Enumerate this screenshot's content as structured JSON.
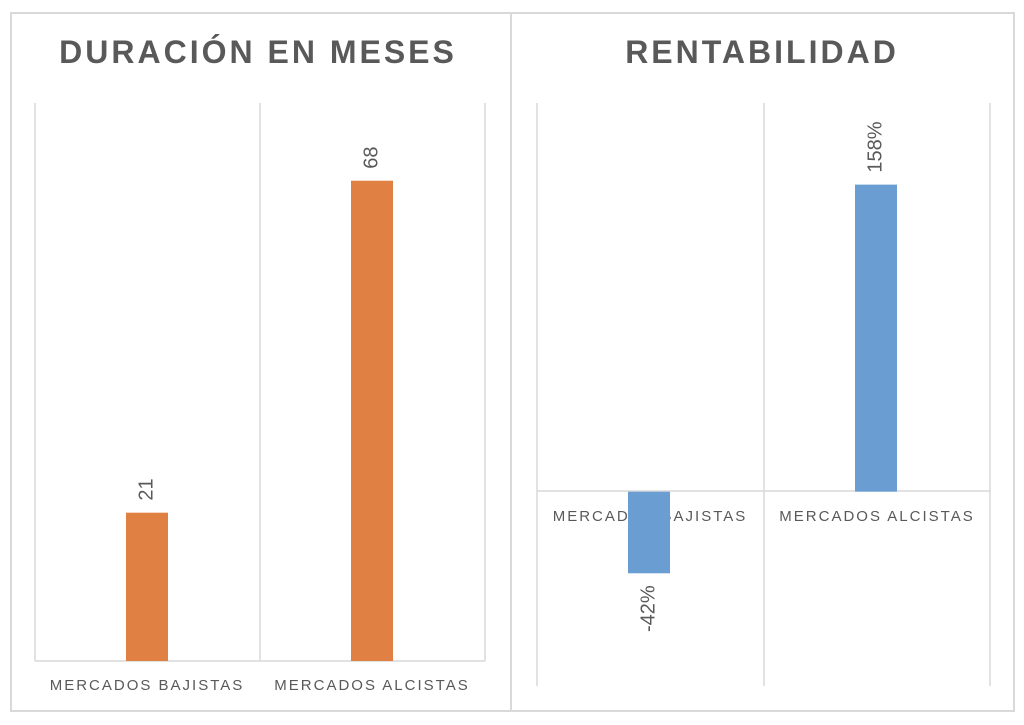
{
  "chart_data": [
    {
      "type": "bar",
      "title": "DURACIÓN EN MESES",
      "categories": [
        "MERCADOS BAJISTAS",
        "MERCADOS ALCISTAS"
      ],
      "values": [
        21,
        68
      ],
      "data_labels": [
        "21",
        "68"
      ],
      "ylim": [
        0,
        79
      ],
      "color": "#e08143"
    },
    {
      "type": "bar",
      "title": "RENTABILIDAD",
      "categories": [
        "MERCADOS BAJISTAS",
        "MERCADOS ALCISTAS"
      ],
      "values": [
        -42,
        158
      ],
      "data_labels": [
        "-42%",
        "158%"
      ],
      "ylim": [
        -100,
        200
      ],
      "color": "#6a9ed3"
    }
  ]
}
